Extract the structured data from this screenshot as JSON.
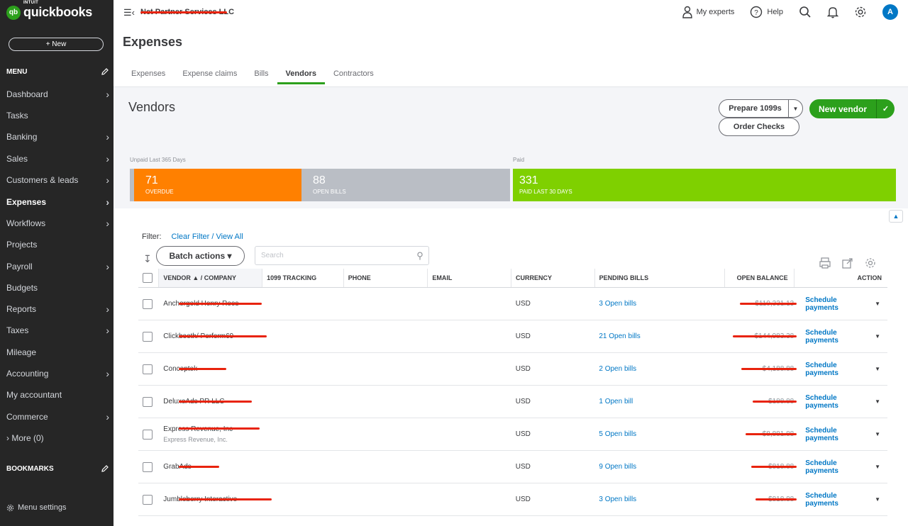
{
  "app": {
    "logo_intuit": "INTUIT",
    "logo_name": "quickbooks",
    "logo_badge": "qb",
    "new_button": "+ New",
    "company_name": "Net Partner Services LLC"
  },
  "sidebar": {
    "menu_label": "MENU",
    "items": [
      {
        "label": "Dashboard",
        "arrow": true
      },
      {
        "label": "Tasks",
        "arrow": false
      },
      {
        "label": "Banking",
        "arrow": true
      },
      {
        "label": "Sales",
        "arrow": true
      },
      {
        "label": "Customers & leads",
        "arrow": true
      },
      {
        "label": "Expenses",
        "arrow": true,
        "active": true
      },
      {
        "label": "Workflows",
        "arrow": true
      },
      {
        "label": "Projects",
        "arrow": false
      },
      {
        "label": "Payroll",
        "arrow": true
      },
      {
        "label": "Budgets",
        "arrow": false
      },
      {
        "label": "Reports",
        "arrow": true
      },
      {
        "label": "Taxes",
        "arrow": true
      },
      {
        "label": "Mileage",
        "arrow": false
      },
      {
        "label": "Accounting",
        "arrow": true
      },
      {
        "label": "My accountant",
        "arrow": false
      },
      {
        "label": "Commerce",
        "arrow": true
      },
      {
        "label": "› More (0)",
        "arrow": false
      }
    ],
    "bookmarks_label": "BOOKMARKS",
    "menu_settings": "Menu settings"
  },
  "topbar": {
    "my_experts": "My experts",
    "help": "Help",
    "avatar_letter": "A"
  },
  "page": {
    "title": "Expenses",
    "tabs": [
      {
        "label": "Expenses",
        "active": false
      },
      {
        "label": "Expense claims",
        "active": false
      },
      {
        "label": "Bills",
        "active": false
      },
      {
        "label": "Vendors",
        "active": true
      },
      {
        "label": "Contractors",
        "active": false
      }
    ]
  },
  "vendors_panel": {
    "title": "Vendors",
    "prepare_1099s": "Prepare 1099s",
    "order_checks": "Order Checks",
    "new_vendor": "New vendor",
    "unpaid_label": "Unpaid Last 365 Days",
    "paid_label": "Paid",
    "overdue": {
      "value": "71",
      "label": "OVERDUE",
      "color": "#ff8000"
    },
    "open_bills": {
      "value": "88",
      "label": "OPEN BILLS",
      "color": "#babec5"
    },
    "paid_30": {
      "value": "331",
      "label": "PAID LAST 30 DAYS",
      "color": "#7fd000"
    }
  },
  "filter": {
    "label": "Filter:",
    "clear_link": "Clear Filter / View All",
    "batch_actions": "Batch actions ▾",
    "search_placeholder": "Search"
  },
  "table": {
    "columns": [
      "VENDOR ▲ / COMPANY",
      "1099 TRACKING",
      "PHONE",
      "EMAIL",
      "CURRENCY",
      "PENDING BILLS",
      "OPEN BALANCE",
      "ACTION"
    ],
    "rows": [
      {
        "vendor": "Anchorgold Henry Rees",
        "subtitle": "",
        "currency": "USD",
        "pending": "3 Open bills",
        "balance": "$110,331.13",
        "action": "Schedule payments"
      },
      {
        "vendor": "Clickbooth/ Perform69",
        "subtitle": "",
        "currency": "USD",
        "pending": "21 Open bills",
        "balance": "$144,983.38",
        "action": "Schedule payments"
      },
      {
        "vendor": "Conceptek",
        "subtitle": "",
        "currency": "USD",
        "pending": "2 Open bills",
        "balance": "$4,188.88",
        "action": "Schedule payments"
      },
      {
        "vendor": "DeluxeAds PR LLC",
        "subtitle": "",
        "currency": "USD",
        "pending": "1 Open bill",
        "balance": "$188.88",
        "action": "Schedule payments"
      },
      {
        "vendor": "Express Revenue, Inc",
        "subtitle": "Express Revenue, Inc.",
        "currency": "USD",
        "pending": "5 Open bills",
        "balance": "$8,881.88",
        "action": "Schedule payments"
      },
      {
        "vendor": "GrabAds",
        "subtitle": "",
        "currency": "USD",
        "pending": "9 Open bills",
        "balance": "$818.88",
        "action": "Schedule payments"
      },
      {
        "vendor": "Jumbleberry Interactive",
        "subtitle": "",
        "currency": "USD",
        "pending": "3 Open bills",
        "balance": "$818.88",
        "action": "Schedule payments"
      }
    ]
  }
}
